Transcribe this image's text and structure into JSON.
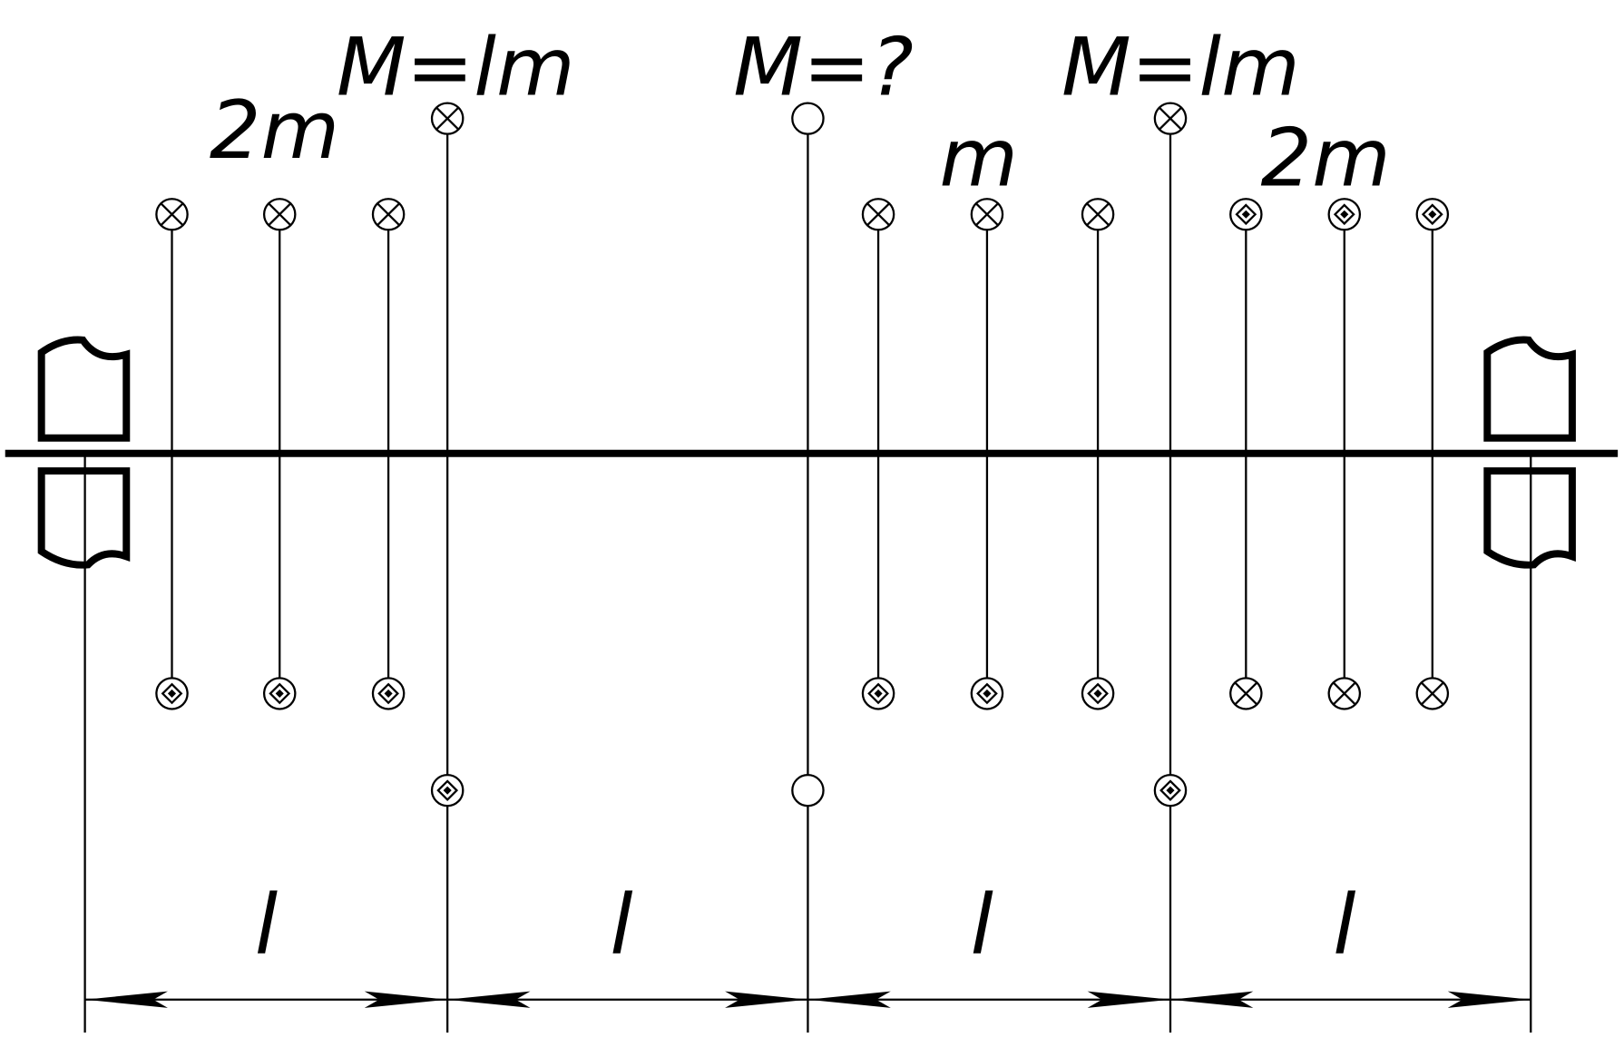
{
  "labels": {
    "left_group_mass": "2m",
    "left_disc_moment": "M=lm",
    "middle_disc_moment": "M=?",
    "middle_group_mass": "m",
    "right_disc_moment": "M=lm",
    "right_group_mass": "2m"
  },
  "dimensions": [
    "l",
    "l",
    "l",
    "l"
  ]
}
